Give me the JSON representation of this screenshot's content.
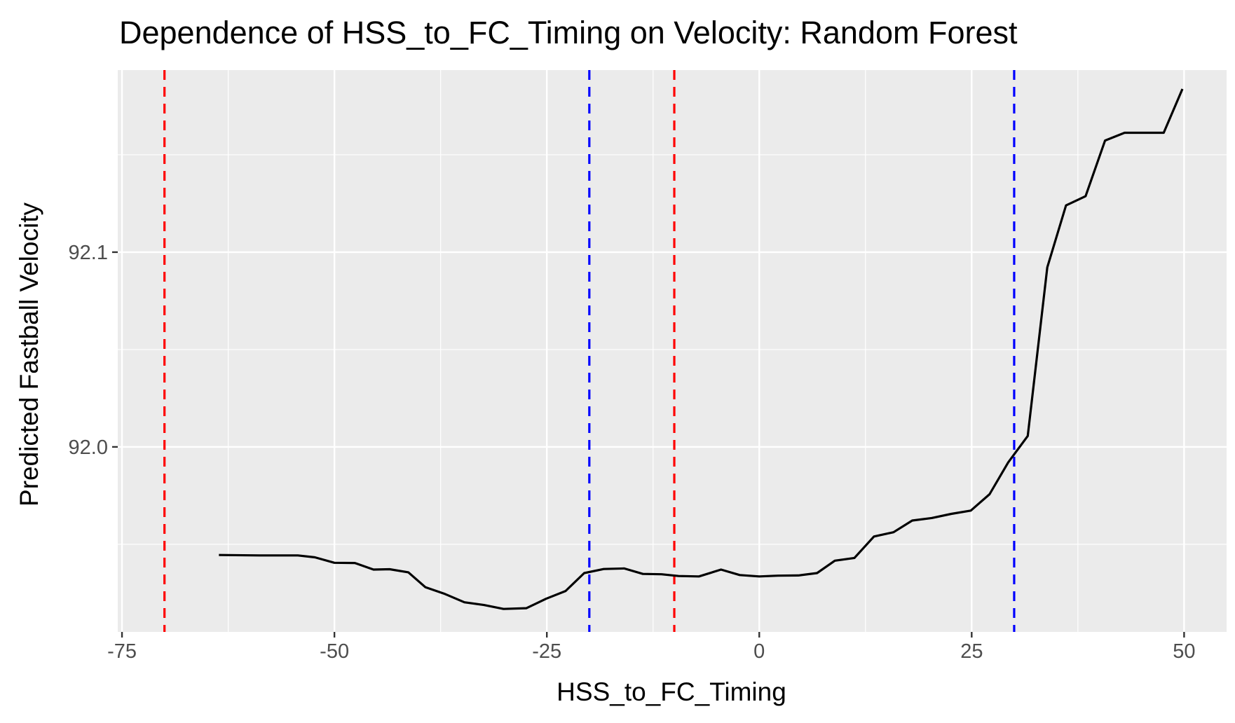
{
  "chart_data": {
    "type": "line",
    "title": "Dependence of HSS_to_FC_Timing on Velocity: Random Forest",
    "xlabel": "HSS_to_FC_Timing",
    "ylabel": "Predicted Fastball Velocity",
    "xlim": [
      -75.5,
      55.0
    ],
    "ylim": [
      91.905,
      92.1935
    ],
    "x_ticks": [
      -75,
      -50,
      -25,
      0,
      25,
      50
    ],
    "x_tick_labels": [
      "-75",
      "-50",
      "-25",
      "0",
      "25",
      "50"
    ],
    "y_ticks": [
      92.0,
      92.1
    ],
    "y_tick_labels": [
      "92.0",
      "92.1"
    ],
    "x_minor_grid": [
      -62.5,
      -37.5,
      -12.5,
      12.5,
      37.5
    ],
    "y_minor_grid": [
      91.95,
      92.05,
      92.15
    ],
    "grid": true,
    "panel_background": "#ebebeb",
    "grid_color": "#ffffff",
    "line_color": "#000000",
    "series": [
      {
        "x": [
          -63.6,
          -58.8,
          -54.3,
          -52.3,
          -50.0,
          -47.6,
          -45.4,
          -43.5,
          -41.3,
          -39.3,
          -37.0,
          -34.7,
          -32.4,
          -30.1,
          -27.4,
          -25.1,
          -22.8,
          -20.6,
          -18.3,
          -15.9,
          -13.7,
          -11.5,
          -9.5,
          -7.1,
          -4.5,
          -2.3,
          0.0,
          2.2,
          4.6,
          6.8,
          8.9,
          11.2,
          13.5,
          15.8,
          18.0,
          20.3,
          22.6,
          24.9,
          27.1,
          29.3,
          31.6,
          33.9,
          36.1,
          38.4,
          40.7,
          43.0,
          45.3,
          47.6,
          49.8
        ],
        "y": [
          91.9445,
          91.9443,
          91.9443,
          91.9433,
          91.9405,
          91.9404,
          91.937,
          91.9372,
          91.9356,
          91.928,
          91.9245,
          91.9202,
          91.9188,
          91.9168,
          91.9172,
          91.922,
          91.926,
          91.9352,
          91.9373,
          91.9376,
          91.9348,
          91.9346,
          91.9337,
          91.9335,
          91.937,
          91.9342,
          91.9335,
          91.9339,
          91.934,
          91.9352,
          91.9416,
          91.943,
          91.954,
          91.9562,
          91.9622,
          91.9635,
          91.9656,
          91.9673,
          91.9757,
          91.992,
          92.0056,
          92.0922,
          92.124,
          92.1287,
          92.1573,
          92.1613,
          92.1613,
          92.1613,
          92.1838
        ]
      }
    ],
    "reference_lines": [
      {
        "x": -70,
        "color": "#ff0000",
        "style": "dashed"
      },
      {
        "x": -10,
        "color": "#ff0000",
        "style": "dashed"
      },
      {
        "x": -20,
        "color": "#0000ff",
        "style": "dashed"
      },
      {
        "x": 30,
        "color": "#0000ff",
        "style": "dashed"
      }
    ]
  }
}
